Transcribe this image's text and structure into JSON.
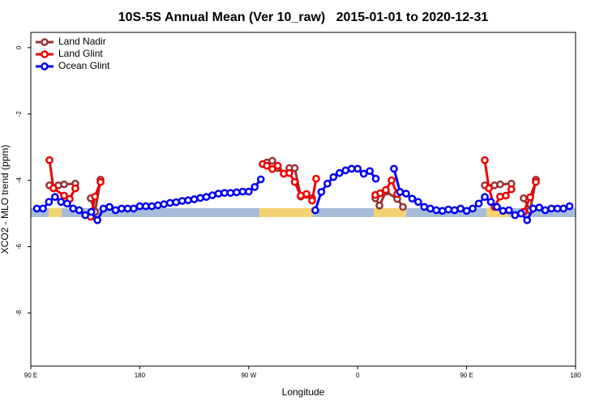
{
  "chart_data": {
    "type": "line",
    "title": "10S-5S Annual Mean (Ver 10_raw)   2015-01-01 to 2020-12-31",
    "x_label": "Longitude",
    "y_label": "XCO2 - MLO trend (ppm)",
    "xlim": [
      90,
      540
    ],
    "ylim": [
      -9.6,
      0.46
    ],
    "xticks": [
      {
        "value": 90,
        "label": "90 E"
      },
      {
        "value": 180,
        "label": "180"
      },
      {
        "value": 270,
        "label": "90 W"
      },
      {
        "value": 360,
        "label": "0"
      },
      {
        "value": 450,
        "label": "90 E"
      },
      {
        "value": 540,
        "label": "180"
      }
    ],
    "yticks": [
      0,
      -2,
      -4,
      -6,
      -8
    ],
    "legend": "top-left",
    "series": [
      {
        "name": "Land Nadir",
        "color": "#993333",
        "x": [
          105.4,
          112.8,
          117.5,
          126.8,
          null,
          139.5,
          143,
          147.6,
          null,
          285,
          289.5,
          294,
          299,
          303.6,
          308,
          313,
          317.7,
          322.4,
          null,
          374.6,
          378,
          383.3,
          392.7,
          397.4,
          null,
          465,
          473,
          477.7,
          487,
          null,
          497.1,
          502.5,
          507.2
        ],
        "values": [
          -4.15,
          -4.15,
          -4.12,
          -4.1,
          null,
          -4.54,
          -4.95,
          -3.98,
          null,
          -3.46,
          -3.41,
          -3.63,
          -3.8,
          -3.63,
          -3.63,
          -4.49,
          -4.44,
          -4.54,
          null,
          -4.54,
          -4.76,
          -4.34,
          -4.56,
          -4.8,
          null,
          -4.15,
          -4.15,
          -4.12,
          -4.1,
          null,
          -4.54,
          -4.9,
          -3.98
        ]
      },
      {
        "name": "Land Glint",
        "color": "#ee0000",
        "x": [
          105.4,
          108.7,
          117.5,
          122.1,
          126.8,
          null,
          139.5,
          143,
          147.6,
          null,
          281.5,
          285,
          289.5,
          294,
          299,
          303.6,
          308,
          313,
          317.7,
          322.4,
          325.7,
          null,
          374.6,
          378.6,
          383.3,
          388,
          392.7,
          null,
          465,
          468.4,
          473,
          477.7,
          482.4,
          487,
          null,
          497.1,
          502.5,
          507.2
        ],
        "values": [
          -3.39,
          -4.24,
          -4.46,
          -4.56,
          -4.24,
          null,
          -5.1,
          -4.49,
          -4.05,
          null,
          -3.51,
          -3.56,
          -3.66,
          -3.56,
          -3.8,
          -3.78,
          -4.05,
          -4.46,
          -4.41,
          -4.61,
          -3.95,
          null,
          -4.44,
          -4.39,
          -4.29,
          -4.0,
          -4.41,
          null,
          -3.39,
          -4.24,
          -4.8,
          -4.49,
          -4.46,
          -4.27,
          null,
          -4.95,
          -4.51,
          -4.05
        ]
      },
      {
        "name": "Ocean Glint",
        "color": "#0000ee",
        "x": [
          95,
          100,
          105,
          110,
          115,
          120,
          125,
          130,
          135,
          140,
          145,
          150,
          155,
          160,
          165,
          170,
          175,
          180,
          185,
          190,
          195,
          200,
          205,
          210,
          215,
          220,
          225,
          230,
          235,
          240,
          245,
          250,
          255,
          260,
          265,
          270,
          275,
          280,
          null,
          325,
          330,
          335,
          340,
          345,
          350,
          355,
          360,
          365,
          370,
          375,
          null,
          390,
          395,
          400,
          405,
          410,
          415,
          420,
          425,
          430,
          435,
          440,
          445,
          450,
          455,
          460,
          465,
          470,
          475,
          480,
          485,
          490,
          495,
          500,
          505,
          510,
          515,
          520,
          525,
          530,
          535
        ],
        "values": [
          -4.85,
          -4.85,
          -4.65,
          -4.5,
          -4.65,
          -4.7,
          -4.85,
          -4.9,
          -5.05,
          -4.95,
          -5.2,
          -4.85,
          -4.8,
          -4.9,
          -4.85,
          -4.85,
          -4.85,
          -4.78,
          -4.78,
          -4.78,
          -4.75,
          -4.72,
          -4.68,
          -4.66,
          -4.62,
          -4.6,
          -4.57,
          -4.53,
          -4.5,
          -4.45,
          -4.4,
          -4.38,
          -4.38,
          -4.36,
          -4.34,
          -4.34,
          -4.2,
          -3.97,
          null,
          -4.9,
          -4.35,
          -4.1,
          -3.9,
          -3.78,
          -3.7,
          -3.65,
          -3.65,
          -3.8,
          -3.72,
          -3.95,
          null,
          -3.65,
          -4.35,
          -4.4,
          -4.55,
          -4.65,
          -4.8,
          -4.85,
          -4.9,
          -4.92,
          -4.88,
          -4.9,
          -4.85,
          -4.92,
          -4.85,
          -4.7,
          -4.5,
          -4.65,
          -4.8,
          -4.92,
          -4.9,
          -5.05,
          -5.0,
          -5.2,
          -4.85,
          -4.82,
          -4.9,
          -4.85,
          -4.85,
          -4.85,
          -4.78
        ]
      }
    ]
  }
}
